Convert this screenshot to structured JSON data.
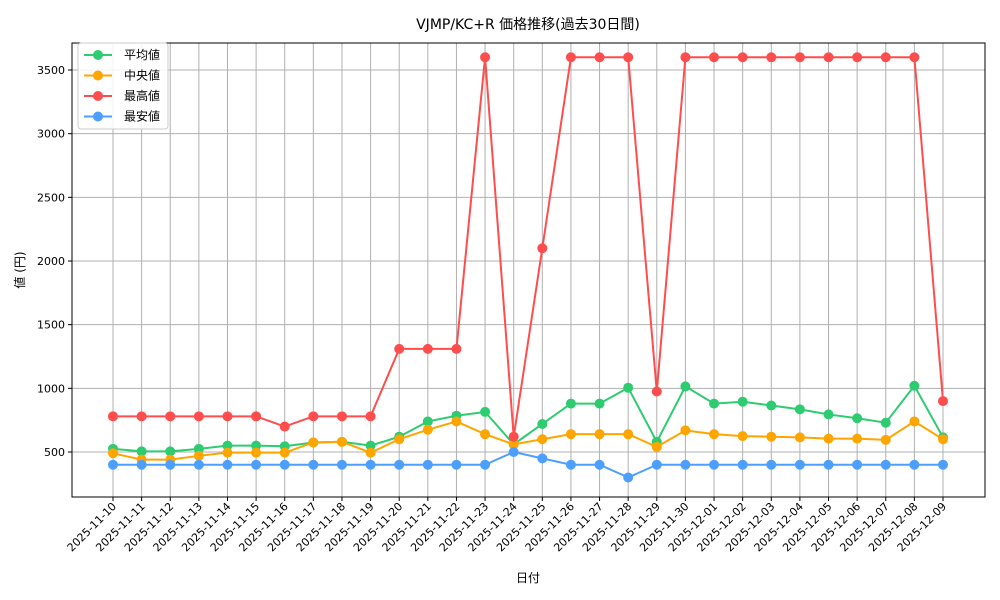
{
  "chart_data": {
    "type": "line",
    "title": "VJMP/KC+R 価格推移(過去30日間)",
    "xlabel": "日付",
    "ylabel": "値 (円)",
    "ylim": [
      200,
      3750
    ],
    "yticks": [
      500,
      1000,
      1500,
      2000,
      2500,
      3000,
      3500
    ],
    "grid": true,
    "legend_position": "upper left",
    "x": [
      "2025-11-10",
      "2025-11-11",
      "2025-11-12",
      "2025-11-13",
      "2025-11-14",
      "2025-11-15",
      "2025-11-16",
      "2025-11-17",
      "2025-11-18",
      "2025-11-19",
      "2025-11-20",
      "2025-11-21",
      "2025-11-22",
      "2025-11-23",
      "2025-11-24",
      "2025-11-25",
      "2025-11-26",
      "2025-11-27",
      "2025-11-28",
      "2025-11-29",
      "2025-11-30",
      "2025-12-01",
      "2025-12-02",
      "2025-12-03",
      "2025-12-04",
      "2025-12-05",
      "2025-12-06",
      "2025-12-07",
      "2025-12-08",
      "2025-12-09"
    ],
    "series": [
      {
        "name": "平均値",
        "color": "#2ecc71",
        "values": [
          525,
          505,
          505,
          525,
          550,
          550,
          545,
          575,
          580,
          550,
          620,
          740,
          785,
          815,
          560,
          720,
          880,
          880,
          1005,
          580,
          1015,
          880,
          895,
          865,
          835,
          795,
          765,
          730,
          1020,
          615
        ]
      },
      {
        "name": "中央値",
        "color": "#ffa500",
        "values": [
          490,
          440,
          440,
          470,
          495,
          495,
          495,
          575,
          580,
          495,
          600,
          675,
          740,
          640,
          560,
          600,
          640,
          640,
          640,
          540,
          670,
          640,
          625,
          620,
          615,
          605,
          605,
          595,
          740,
          600
        ]
      },
      {
        "name": "最高値",
        "color": "#ff4d4d",
        "values": [
          780,
          780,
          780,
          780,
          780,
          780,
          700,
          780,
          780,
          780,
          1310,
          1310,
          1310,
          3600,
          620,
          2100,
          3600,
          3600,
          3600,
          975,
          3600,
          3600,
          3600,
          3600,
          3600,
          3600,
          3600,
          3600,
          3600,
          900
        ]
      },
      {
        "name": "最安値",
        "color": "#4d9fff",
        "values": [
          400,
          400,
          400,
          400,
          400,
          400,
          400,
          400,
          400,
          400,
          400,
          400,
          400,
          400,
          500,
          450,
          400,
          400,
          300,
          400,
          400,
          400,
          400,
          400,
          400,
          400,
          400,
          400,
          400,
          400
        ]
      }
    ]
  }
}
